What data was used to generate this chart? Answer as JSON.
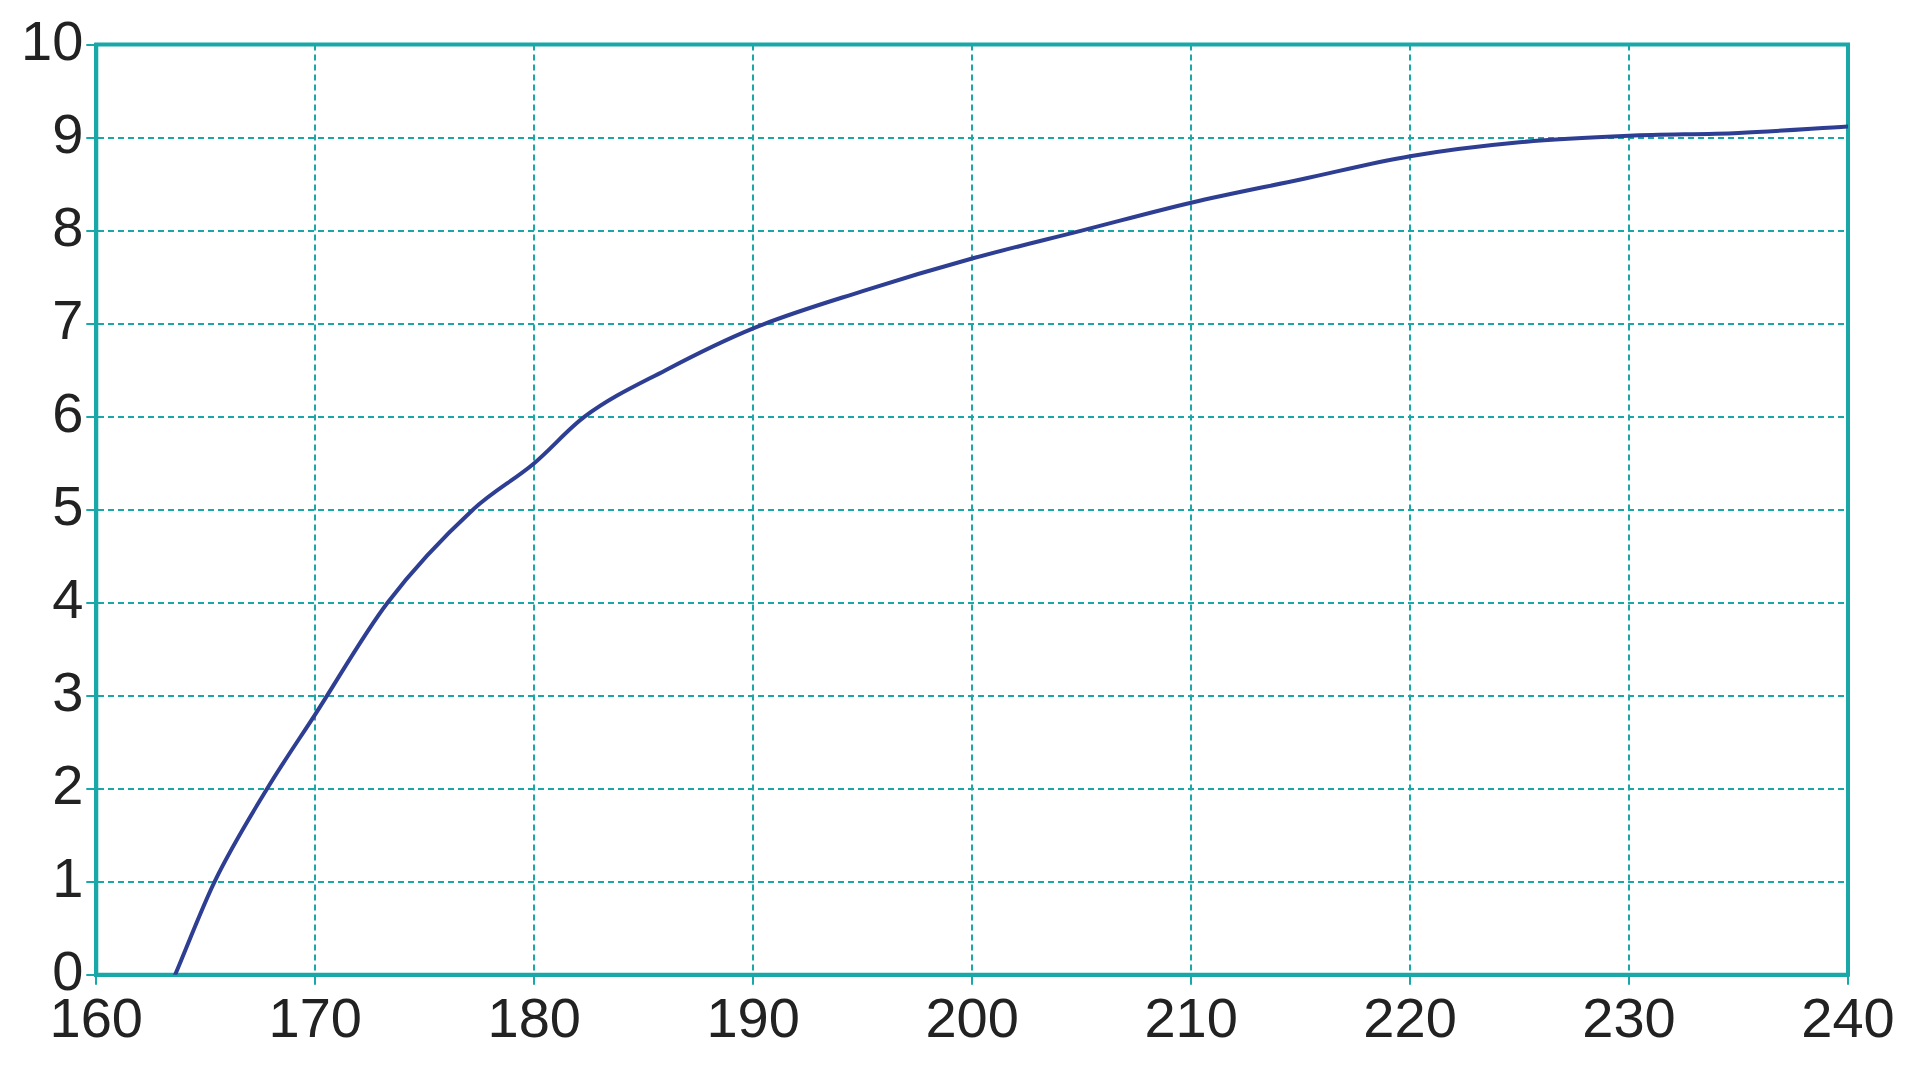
{
  "chart_data": {
    "type": "line",
    "x": [
      163.6,
      165.4,
      167.8,
      170,
      173.3,
      177.2,
      180,
      182.3,
      186,
      190,
      195,
      200,
      205,
      210,
      215,
      220,
      225,
      230,
      235,
      240
    ],
    "series": [
      {
        "color": "#2e3f93",
        "values": [
          0,
          1,
          2,
          2.8,
          4,
          5,
          5.5,
          6,
          6.5,
          6.95,
          7.35,
          7.7,
          8.0,
          8.3,
          8.55,
          8.8,
          8.95,
          9.02,
          9.05,
          9.12
        ]
      }
    ],
    "xlim": [
      160,
      240
    ],
    "xticks": [
      160,
      170,
      180,
      190,
      200,
      210,
      220,
      230,
      240
    ],
    "ylim": [
      0,
      10
    ],
    "yticks": [
      0,
      1,
      2,
      3,
      4,
      5,
      6,
      7,
      8,
      9,
      10
    ],
    "grid": true,
    "marker": "none",
    "line_style": "solid",
    "legend": false
  }
}
